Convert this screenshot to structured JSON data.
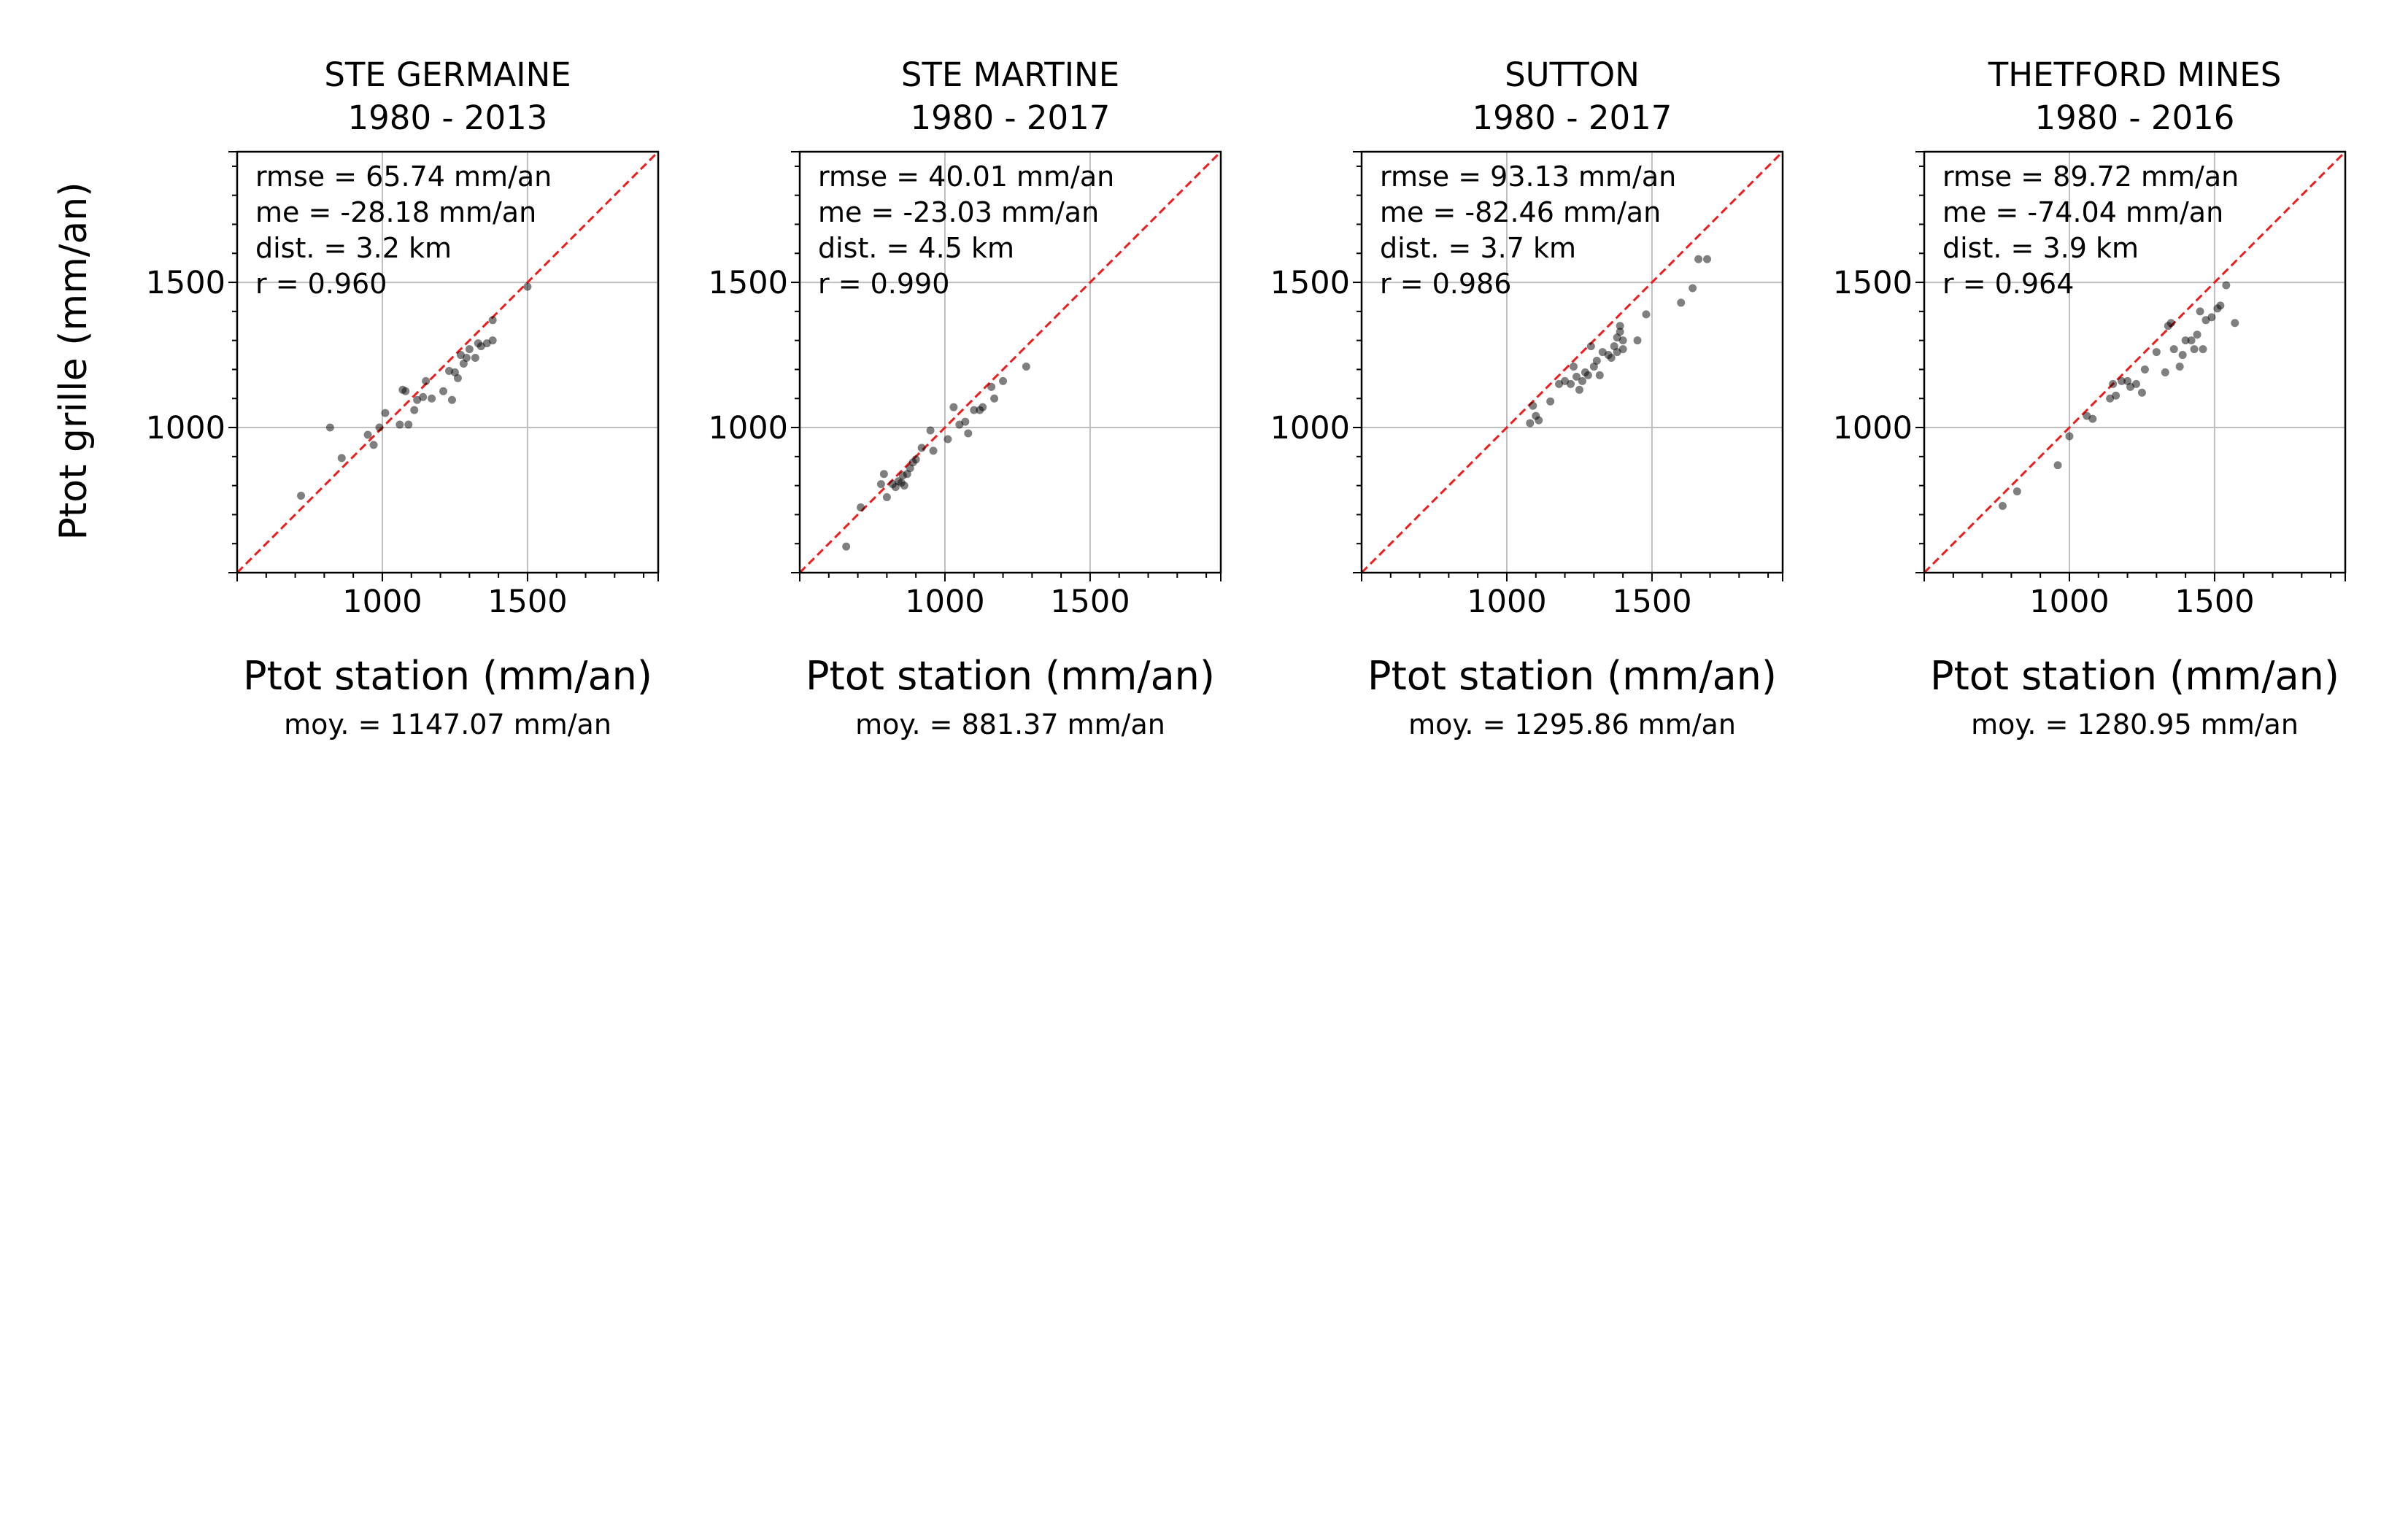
{
  "figure": {
    "ylabel": "Ptot grille (mm/an)",
    "xlabel": "Ptot station (mm/an)"
  },
  "style": {
    "point_color": "#000000",
    "point_opacity": 0.5,
    "identity_line_color": "#ee1c1c",
    "grid_color": "#bfbfbf",
    "axis_color": "#000000"
  },
  "chart_data": [
    {
      "type": "scatter",
      "title": "STE GERMAINE",
      "subtitle": "1980 - 2013",
      "xlabel": "Ptot station (mm/an)",
      "ylabel": "Ptot grille (mm/an)",
      "xlim": [
        500,
        1950
      ],
      "ylim": [
        500,
        1950
      ],
      "ticks": [
        1000,
        1500
      ],
      "grid": true,
      "identity_line": true,
      "stats": [
        "rmse = 65.74 mm/an",
        "me = -28.18 mm/an",
        "dist. = 3.2 km",
        "r = 0.960"
      ],
      "mean_label": "moy. = 1147.07 mm/an",
      "points": [
        [
          720,
          765
        ],
        [
          820,
          1000
        ],
        [
          860,
          895
        ],
        [
          950,
          975
        ],
        [
          970,
          940
        ],
        [
          990,
          1000
        ],
        [
          1010,
          1050
        ],
        [
          1060,
          1010
        ],
        [
          1070,
          1130
        ],
        [
          1080,
          1125
        ],
        [
          1090,
          1010
        ],
        [
          1110,
          1060
        ],
        [
          1120,
          1095
        ],
        [
          1140,
          1105
        ],
        [
          1150,
          1160
        ],
        [
          1170,
          1100
        ],
        [
          1210,
          1125
        ],
        [
          1230,
          1195
        ],
        [
          1240,
          1095
        ],
        [
          1250,
          1190
        ],
        [
          1260,
          1170
        ],
        [
          1270,
          1250
        ],
        [
          1280,
          1220
        ],
        [
          1290,
          1240
        ],
        [
          1300,
          1270
        ],
        [
          1320,
          1240
        ],
        [
          1330,
          1290
        ],
        [
          1340,
          1280
        ],
        [
          1360,
          1290
        ],
        [
          1380,
          1300
        ],
        [
          1380,
          1370
        ],
        [
          1500,
          1485
        ]
      ]
    },
    {
      "type": "scatter",
      "title": "STE MARTINE",
      "subtitle": "1980 - 2017",
      "xlabel": "Ptot station (mm/an)",
      "ylabel": "Ptot grille (mm/an)",
      "xlim": [
        500,
        1950
      ],
      "ylim": [
        500,
        1950
      ],
      "ticks": [
        1000,
        1500
      ],
      "grid": true,
      "identity_line": true,
      "stats": [
        "rmse = 40.01 mm/an",
        "me = -23.03 mm/an",
        "dist. = 4.5 km",
        "r = 0.990"
      ],
      "mean_label": "moy. = 881.37 mm/an",
      "points": [
        [
          660,
          590
        ],
        [
          710,
          725
        ],
        [
          780,
          805
        ],
        [
          790,
          840
        ],
        [
          800,
          760
        ],
        [
          820,
          805
        ],
        [
          830,
          795
        ],
        [
          840,
          815
        ],
        [
          850,
          810
        ],
        [
          855,
          835
        ],
        [
          860,
          800
        ],
        [
          870,
          840
        ],
        [
          880,
          860
        ],
        [
          890,
          880
        ],
        [
          900,
          890
        ],
        [
          920,
          930
        ],
        [
          950,
          990
        ],
        [
          960,
          920
        ],
        [
          1010,
          960
        ],
        [
          1030,
          1070
        ],
        [
          1050,
          1010
        ],
        [
          1070,
          1020
        ],
        [
          1080,
          980
        ],
        [
          1100,
          1060
        ],
        [
          1120,
          1060
        ],
        [
          1130,
          1070
        ],
        [
          1160,
          1140
        ],
        [
          1170,
          1100
        ],
        [
          1200,
          1160
        ],
        [
          1280,
          1210
        ]
      ]
    },
    {
      "type": "scatter",
      "title": "SUTTON",
      "subtitle": "1980 - 2017",
      "xlabel": "Ptot station (mm/an)",
      "ylabel": "Ptot grille (mm/an)",
      "xlim": [
        500,
        1950
      ],
      "ylim": [
        500,
        1950
      ],
      "ticks": [
        1000,
        1500
      ],
      "grid": true,
      "identity_line": true,
      "stats": [
        "rmse = 93.13 mm/an",
        "me = -82.46 mm/an",
        "dist. = 3.7 km",
        "r = 0.986"
      ],
      "mean_label": "moy. = 1295.86 mm/an",
      "points": [
        [
          1080,
          1015
        ],
        [
          1090,
          1075
        ],
        [
          1100,
          1040
        ],
        [
          1110,
          1025
        ],
        [
          1150,
          1090
        ],
        [
          1180,
          1150
        ],
        [
          1200,
          1160
        ],
        [
          1220,
          1150
        ],
        [
          1230,
          1210
        ],
        [
          1240,
          1175
        ],
        [
          1250,
          1130
        ],
        [
          1260,
          1160
        ],
        [
          1270,
          1190
        ],
        [
          1280,
          1180
        ],
        [
          1290,
          1280
        ],
        [
          1300,
          1210
        ],
        [
          1310,
          1230
        ],
        [
          1320,
          1180
        ],
        [
          1330,
          1260
        ],
        [
          1350,
          1250
        ],
        [
          1360,
          1240
        ],
        [
          1370,
          1280
        ],
        [
          1380,
          1260
        ],
        [
          1380,
          1310
        ],
        [
          1390,
          1350
        ],
        [
          1390,
          1330
        ],
        [
          1400,
          1300
        ],
        [
          1400,
          1270
        ],
        [
          1450,
          1300
        ],
        [
          1480,
          1390
        ],
        [
          1600,
          1430
        ],
        [
          1640,
          1480
        ],
        [
          1660,
          1580
        ],
        [
          1690,
          1580
        ]
      ]
    },
    {
      "type": "scatter",
      "title": "THETFORD MINES",
      "subtitle": "1980 - 2016",
      "xlabel": "Ptot station (mm/an)",
      "ylabel": "Ptot grille (mm/an)",
      "xlim": [
        500,
        1950
      ],
      "ylim": [
        500,
        1950
      ],
      "ticks": [
        1000,
        1500
      ],
      "grid": true,
      "identity_line": true,
      "stats": [
        "rmse = 89.72 mm/an",
        "me = -74.04 mm/an",
        "dist. = 3.9 km",
        "r = 0.964"
      ],
      "mean_label": "moy. = 1280.95 mm/an",
      "points": [
        [
          770,
          730
        ],
        [
          820,
          780
        ],
        [
          960,
          870
        ],
        [
          1000,
          970
        ],
        [
          1060,
          1040
        ],
        [
          1080,
          1030
        ],
        [
          1140,
          1100
        ],
        [
          1150,
          1150
        ],
        [
          1160,
          1110
        ],
        [
          1180,
          1160
        ],
        [
          1200,
          1160
        ],
        [
          1210,
          1140
        ],
        [
          1230,
          1150
        ],
        [
          1250,
          1120
        ],
        [
          1260,
          1200
        ],
        [
          1300,
          1260
        ],
        [
          1330,
          1190
        ],
        [
          1340,
          1350
        ],
        [
          1350,
          1360
        ],
        [
          1360,
          1270
        ],
        [
          1380,
          1210
        ],
        [
          1390,
          1250
        ],
        [
          1400,
          1300
        ],
        [
          1420,
          1300
        ],
        [
          1430,
          1270
        ],
        [
          1440,
          1320
        ],
        [
          1450,
          1400
        ],
        [
          1460,
          1270
        ],
        [
          1470,
          1370
        ],
        [
          1490,
          1380
        ],
        [
          1510,
          1410
        ],
        [
          1520,
          1420
        ],
        [
          1540,
          1490
        ],
        [
          1570,
          1360
        ]
      ]
    }
  ]
}
